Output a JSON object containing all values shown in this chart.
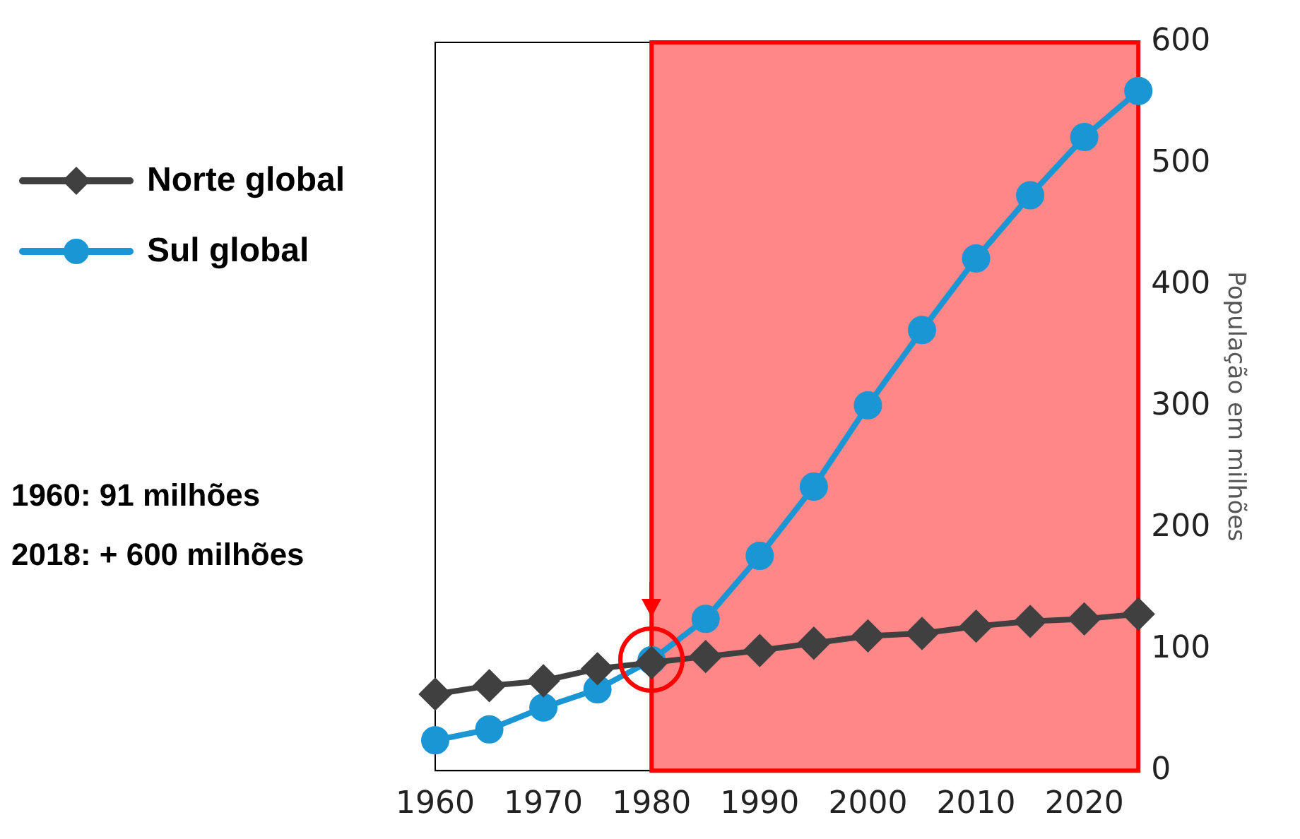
{
  "chart_data": {
    "type": "line",
    "ylabel": "População em milhões",
    "x": [
      1960,
      1965,
      1970,
      1975,
      1980,
      1985,
      1990,
      1995,
      2000,
      2005,
      2010,
      2015,
      2020,
      2025
    ],
    "series": [
      {
        "name": "Norte global",
        "color": "#404040",
        "marker": "diamond",
        "values": [
          63,
          70,
          74,
          84,
          89,
          94,
          99,
          105,
          111,
          113,
          119,
          123,
          125,
          129
        ]
      },
      {
        "name": "Sul global",
        "color": "#1a96d4",
        "marker": "circle",
        "values": [
          25,
          34,
          52,
          67,
          91,
          125,
          177,
          234,
          301,
          363,
          422,
          474,
          522,
          560
        ]
      }
    ],
    "xlim": [
      1960,
      2025
    ],
    "xticks": [
      1960,
      1970,
      1980,
      1990,
      2000,
      2010,
      2020
    ],
    "ylim": [
      0,
      600
    ],
    "yticks": [
      0,
      100,
      200,
      300,
      400,
      500,
      600
    ],
    "bands": [
      {
        "axis": "x",
        "from": 1980,
        "to": 2025,
        "color": "#ff0000"
      }
    ],
    "annotations": [
      "1960: 91 milhões",
      "2018: + 600 milhões"
    ],
    "legend": "left",
    "grid": false
  }
}
